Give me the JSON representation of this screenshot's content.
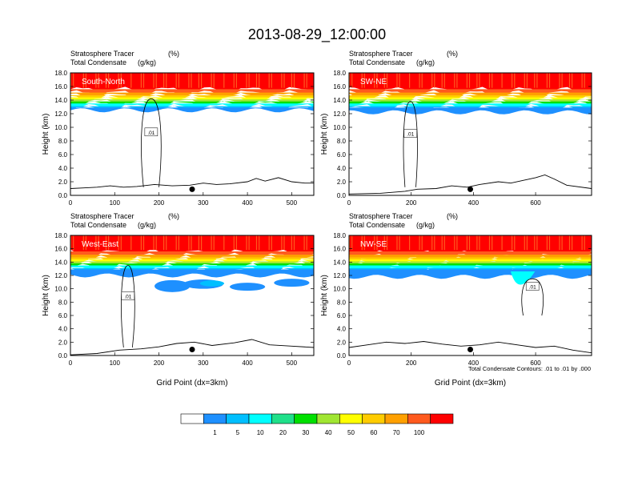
{
  "title": "2013-08-29_12:00:00",
  "footnote": "Total Condensate Contours: .01 to .01 by .000",
  "colorbar": {
    "labels": [
      "1",
      "5",
      "10",
      "20",
      "30",
      "40",
      "50",
      "60",
      "70",
      "100"
    ],
    "colors": [
      "#ffffff",
      "#1e90ff",
      "#00bfff",
      "#00ffff",
      "#20e08a",
      "#00e000",
      "#a0e632",
      "#ffff00",
      "#ffcc00",
      "#ffa000",
      "#ff5a1e",
      "#ff0000"
    ]
  },
  "colors": {
    "red": "#ff0000",
    "orange_red": "#ff5a1e",
    "orange": "#ffa000",
    "gold": "#ffcc00",
    "yellow": "#ffff00",
    "yellow_green": "#a0e632",
    "green": "#00e000",
    "cyan": "#00ffff",
    "deep_sky": "#00bfff",
    "blue": "#1e90ff",
    "contour": "#000000"
  },
  "chart_data": [
    {
      "type": "contour",
      "panel": "South-North",
      "subtitle_left": "Stratosphere Tracer",
      "subtitle_left2": "Total Condensate",
      "units1": "(%)",
      "units2": "(g/kg)",
      "xlabel": "",
      "ylabel": "Height (km)",
      "xlim": [
        0,
        550
      ],
      "ylim": [
        0,
        18
      ],
      "x_ticks": [
        "0",
        "100",
        "200",
        "300",
        "400",
        "500"
      ],
      "y_ticks": [
        "0.0",
        "2.0",
        "4.0",
        "6.0",
        "8.0",
        "10.0",
        "12.0",
        "14.0",
        "16.0",
        "18.0"
      ],
      "contour_label": ".01",
      "marker": {
        "x": 275,
        "y": 0.9
      },
      "cloud_base_km": 12.5,
      "terrain_km": [
        [
          0,
          1.0
        ],
        [
          30,
          1.1
        ],
        [
          60,
          1.2
        ],
        [
          90,
          1.4
        ],
        [
          120,
          1.2
        ],
        [
          150,
          1.3
        ],
        [
          190,
          1.6
        ],
        [
          230,
          1.4
        ],
        [
          270,
          1.5
        ],
        [
          300,
          1.8
        ],
        [
          330,
          1.6
        ],
        [
          360,
          1.7
        ],
        [
          400,
          2.0
        ],
        [
          420,
          2.5
        ],
        [
          440,
          2.1
        ],
        [
          470,
          2.6
        ],
        [
          500,
          2.0
        ],
        [
          530,
          1.8
        ],
        [
          550,
          1.8
        ]
      ]
    },
    {
      "type": "contour",
      "panel": "SW-NE",
      "subtitle_left": "Stratosphere Tracer",
      "subtitle_left2": "Total Condensate",
      "units1": "(%)",
      "units2": "(g/kg)",
      "xlabel": "",
      "ylabel": "Height (km)",
      "xlim": [
        0,
        780
      ],
      "ylim": [
        0,
        18
      ],
      "x_ticks": [
        "0",
        "200",
        "400",
        "600"
      ],
      "y_ticks": [
        "0.0",
        "2.0",
        "4.0",
        "6.0",
        "8.0",
        "10.0",
        "12.0",
        "14.0",
        "16.0",
        "18.0"
      ],
      "contour_label": ".01",
      "marker": {
        "x": 390,
        "y": 0.9
      },
      "cloud_base_km": 12.2,
      "terrain_km": [
        [
          0,
          0.2
        ],
        [
          100,
          0.3
        ],
        [
          180,
          0.6
        ],
        [
          220,
          0.9
        ],
        [
          280,
          1.0
        ],
        [
          330,
          1.4
        ],
        [
          380,
          1.2
        ],
        [
          420,
          1.6
        ],
        [
          480,
          2.0
        ],
        [
          520,
          1.8
        ],
        [
          560,
          2.2
        ],
        [
          600,
          2.6
        ],
        [
          630,
          3.0
        ],
        [
          660,
          2.4
        ],
        [
          700,
          1.5
        ],
        [
          780,
          1.0
        ]
      ]
    },
    {
      "type": "contour",
      "panel": "West-East",
      "subtitle_left": "Stratosphere Tracer",
      "subtitle_left2": "Total Condensate",
      "units1": "(%)",
      "units2": "(g/kg)",
      "xlabel": "Grid Point (dx=3km)",
      "ylabel": "Height (km)",
      "xlim": [
        0,
        550
      ],
      "ylim": [
        0,
        18
      ],
      "x_ticks": [
        "0",
        "100",
        "200",
        "300",
        "400",
        "500"
      ],
      "y_ticks": [
        "0.0",
        "2.0",
        "4.0",
        "6.0",
        "8.0",
        "10.0",
        "12.0",
        "14.0",
        "16.0",
        "18.0"
      ],
      "contour_label": ".01",
      "marker": {
        "x": 275,
        "y": 0.9
      },
      "cloud_base_km": 12.0,
      "terrain_km": [
        [
          0,
          0.1
        ],
        [
          60,
          0.3
        ],
        [
          110,
          0.8
        ],
        [
          160,
          1.0
        ],
        [
          200,
          1.3
        ],
        [
          240,
          1.8
        ],
        [
          280,
          2.0
        ],
        [
          320,
          1.5
        ],
        [
          370,
          1.9
        ],
        [
          410,
          2.4
        ],
        [
          450,
          1.6
        ],
        [
          500,
          1.4
        ],
        [
          550,
          1.2
        ]
      ]
    },
    {
      "type": "contour",
      "panel": "NW-SE",
      "subtitle_left": "Stratosphere Tracer",
      "subtitle_left2": "Total Condensate",
      "units1": "(%)",
      "units2": "(g/kg)",
      "xlabel": "Grid Point (dx=3km)",
      "ylabel": "Height (km)",
      "xlim": [
        0,
        780
      ],
      "ylim": [
        0,
        18
      ],
      "x_ticks": [
        "0",
        "200",
        "400",
        "600"
      ],
      "y_ticks": [
        "0.0",
        "2.0",
        "4.0",
        "6.0",
        "8.0",
        "10.0",
        "12.0",
        "14.0",
        "16.0",
        "18.0"
      ],
      "contour_label": ".01",
      "marker": {
        "x": 390,
        "y": 0.9
      },
      "cloud_base_km": 11.8,
      "terrain_km": [
        [
          0,
          1.2
        ],
        [
          60,
          1.6
        ],
        [
          120,
          2.0
        ],
        [
          180,
          1.8
        ],
        [
          240,
          2.1
        ],
        [
          300,
          1.7
        ],
        [
          360,
          1.4
        ],
        [
          420,
          1.6
        ],
        [
          480,
          2.0
        ],
        [
          540,
          1.6
        ],
        [
          600,
          1.2
        ],
        [
          660,
          1.4
        ],
        [
          720,
          0.8
        ],
        [
          780,
          0.4
        ]
      ]
    }
  ]
}
